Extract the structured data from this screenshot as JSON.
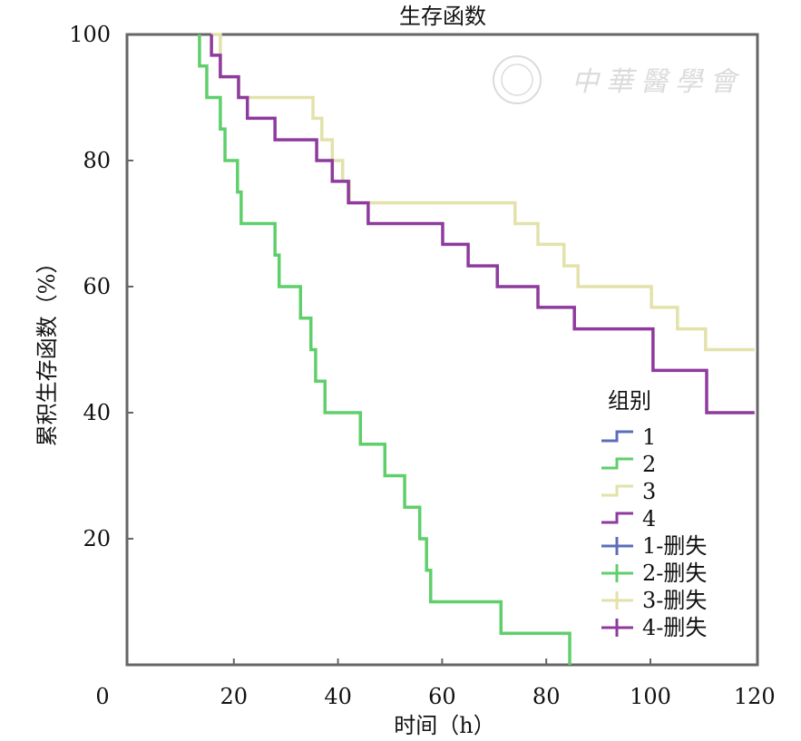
{
  "chart_data": {
    "type": "line",
    "subtype": "kaplan-meier-step",
    "title": "生存函数",
    "xlabel": "时间（h）",
    "ylabel": "累积生存函数（%）",
    "xlim": [
      0,
      120
    ],
    "ylim": [
      0,
      100
    ],
    "xticks": [
      0,
      20,
      40,
      60,
      80,
      100,
      120
    ],
    "yticks": [
      20,
      40,
      60,
      80,
      100
    ],
    "grid": false,
    "legend_title": "组别",
    "legend_position": "bottom-right",
    "legend": [
      "1",
      "2",
      "3",
      "4",
      "1-删失",
      "2-删失",
      "3-删失",
      "4-删失"
    ],
    "watermark": "中華醫學會",
    "series": [
      {
        "name": "1",
        "color": "#5a6fb8",
        "x": [],
        "y": []
      },
      {
        "name": "2",
        "color": "#5fcf6b",
        "x": [
          13.4,
          13.4,
          14.8,
          17.4,
          18.3,
          20.7,
          21.4,
          27.9,
          28.7,
          32.8,
          34.8,
          35.7,
          37.5,
          44.3,
          49.0,
          52.8,
          55.7,
          57.0,
          57.8,
          71.3,
          84.5
        ],
        "y": [
          100,
          95,
          90,
          85,
          80,
          75,
          70,
          65,
          60,
          55,
          50,
          45,
          40,
          35,
          30,
          25,
          20,
          15,
          10,
          5,
          0
        ]
      },
      {
        "name": "3",
        "color": "#e2e2aa",
        "x": [
          15.7,
          17.4,
          20.9,
          35.2,
          36.9,
          38.9,
          40.9,
          42.2,
          74.0,
          78.4,
          83.4,
          86.1,
          100.2,
          105.2,
          110.6,
          120
        ],
        "y": [
          100,
          93.3,
          90,
          86.7,
          83.3,
          80,
          76.7,
          73.3,
          70,
          66.7,
          63.3,
          60,
          56.7,
          53.3,
          50,
          50
        ]
      },
      {
        "name": "4",
        "color": "#8e3a9e",
        "x": [
          15.7,
          15.7,
          17.4,
          20.9,
          22.6,
          27.9,
          35.9,
          38.9,
          42.0,
          45.8,
          60.1,
          65.0,
          70.6,
          78.4,
          85.4,
          100.5,
          110.8,
          120
        ],
        "y": [
          100,
          96.7,
          93.3,
          90,
          86.7,
          83.3,
          80,
          76.7,
          73.3,
          70,
          66.7,
          63.3,
          60,
          56.7,
          53.3,
          46.7,
          40,
          40
        ]
      }
    ]
  }
}
